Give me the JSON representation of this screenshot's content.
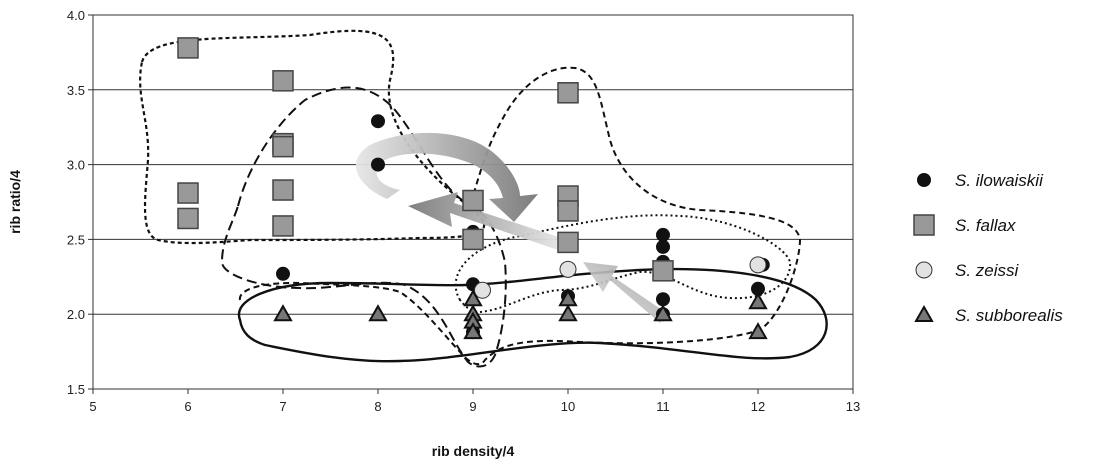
{
  "chart_data": {
    "type": "scatter",
    "xlabel": "rib density/4",
    "ylabel": "rib ratio/4",
    "xlim": [
      5,
      13
    ],
    "ylim": [
      1.5,
      4.0
    ],
    "x_ticks": [
      "5",
      "6",
      "7",
      "8",
      "9",
      "10",
      "11",
      "12",
      "13"
    ],
    "y_ticks": [
      "1.5",
      "2.0",
      "2.5",
      "3.0",
      "3.5",
      "4.0"
    ],
    "grid": "horizontal",
    "legend_position": "right",
    "series": [
      {
        "name": "S. ilowaiskii",
        "marker": "filled-circle",
        "color": "#111111",
        "points": [
          [
            7,
            2.27
          ],
          [
            8,
            3.29
          ],
          [
            8,
            3.0
          ],
          [
            9,
            2.55
          ],
          [
            9,
            2.2
          ],
          [
            9,
            1.88
          ],
          [
            10,
            2.5
          ],
          [
            10,
            2.12
          ],
          [
            11,
            2.53
          ],
          [
            11,
            2.45
          ],
          [
            11,
            2.35
          ],
          [
            11,
            2.1
          ],
          [
            11,
            2.0
          ],
          [
            12,
            2.17
          ],
          [
            12.05,
            2.33
          ]
        ]
      },
      {
        "name": "S. fallax",
        "marker": "square",
        "color": "#999999",
        "points": [
          [
            6,
            3.78
          ],
          [
            6,
            2.81
          ],
          [
            6,
            2.64
          ],
          [
            7,
            3.56
          ],
          [
            7,
            3.14
          ],
          [
            7,
            3.12
          ],
          [
            7,
            2.83
          ],
          [
            7,
            2.59
          ],
          [
            9,
            2.76
          ],
          [
            9,
            2.5
          ],
          [
            10,
            3.48
          ],
          [
            10,
            2.79
          ],
          [
            10,
            2.69
          ],
          [
            10,
            2.48
          ],
          [
            11,
            2.29
          ]
        ]
      },
      {
        "name": "S. zeissi",
        "marker": "open-circle",
        "color": "#e2e2e2",
        "points": [
          [
            9.1,
            2.16
          ],
          [
            10,
            2.3
          ],
          [
            12,
            2.33
          ]
        ]
      },
      {
        "name": "S. subborealis",
        "marker": "triangle",
        "color": "#777777",
        "points": [
          [
            7,
            2.0
          ],
          [
            8,
            2.0
          ],
          [
            9,
            2.1
          ],
          [
            9,
            2.0
          ],
          [
            9,
            1.95
          ],
          [
            9,
            1.88
          ],
          [
            10,
            2.1
          ],
          [
            10,
            2.0
          ],
          [
            11,
            2.0
          ],
          [
            12,
            2.08
          ],
          [
            12,
            1.88
          ]
        ]
      }
    ]
  }
}
